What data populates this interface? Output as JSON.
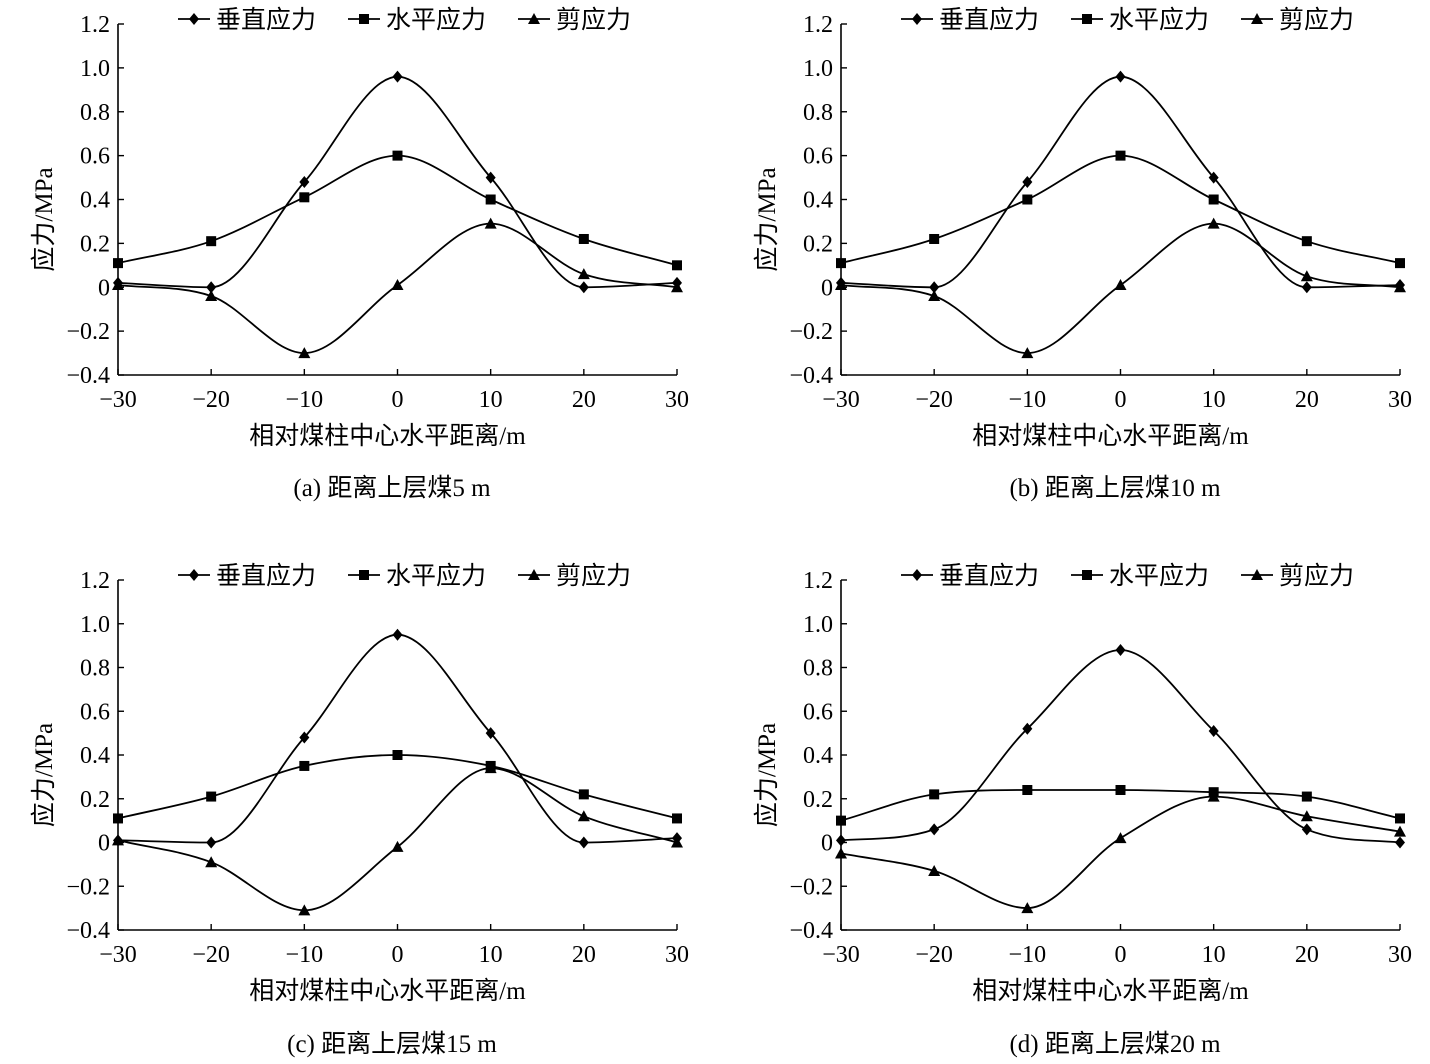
{
  "chart_data": [
    {
      "type": "line",
      "caption": "(a)  距离上层煤5 m",
      "xlabel": "相对煤柱中心水平距离/m",
      "ylabel": "应力/MPa",
      "xlim": [
        -30,
        30
      ],
      "ylim": [
        -0.4,
        1.2
      ],
      "xticks": [
        "−30",
        "−20",
        "−10",
        "0",
        "10",
        "20",
        "30"
      ],
      "yticks": [
        "−0.4",
        "−0.2",
        "0",
        "0.2",
        "0.4",
        "0.6",
        "0.8",
        "1.0",
        "1.2"
      ],
      "legend_position": "top",
      "x": [
        -30,
        -20,
        -10,
        0,
        10,
        20,
        30
      ],
      "series": [
        {
          "name": "垂直应力",
          "marker": "diamond",
          "values": [
            0.02,
            0.0,
            0.48,
            0.96,
            0.5,
            0.0,
            0.02
          ]
        },
        {
          "name": "水平应力",
          "marker": "square",
          "values": [
            0.11,
            0.21,
            0.41,
            0.6,
            0.4,
            0.22,
            0.1
          ]
        },
        {
          "name": "剪应力",
          "marker": "triangle",
          "values": [
            0.01,
            -0.04,
            -0.3,
            0.01,
            0.29,
            0.06,
            0.0
          ]
        }
      ]
    },
    {
      "type": "line",
      "caption": "(b)  距离上层煤10 m",
      "xlabel": "相对煤柱中心水平距离/m",
      "ylabel": "应力/MPa",
      "xlim": [
        -30,
        30
      ],
      "ylim": [
        -0.4,
        1.2
      ],
      "xticks": [
        "−30",
        "−20",
        "−10",
        "0",
        "10",
        "20",
        "30"
      ],
      "yticks": [
        "−0.4",
        "−0.2",
        "0",
        "0.2",
        "0.4",
        "0.6",
        "0.8",
        "1.0",
        "1.2"
      ],
      "legend_position": "top",
      "x": [
        -30,
        -20,
        -10,
        0,
        10,
        20,
        30
      ],
      "series": [
        {
          "name": "垂直应力",
          "marker": "diamond",
          "values": [
            0.02,
            0.0,
            0.48,
            0.96,
            0.5,
            0.0,
            0.01
          ]
        },
        {
          "name": "水平应力",
          "marker": "square",
          "values": [
            0.11,
            0.22,
            0.4,
            0.6,
            0.4,
            0.21,
            0.11
          ]
        },
        {
          "name": "剪应力",
          "marker": "triangle",
          "values": [
            0.01,
            -0.04,
            -0.3,
            0.01,
            0.29,
            0.05,
            0.0
          ]
        }
      ]
    },
    {
      "type": "line",
      "caption": "(c)  距离上层煤15 m",
      "xlabel": "相对煤柱中心水平距离/m",
      "ylabel": "应力/MPa",
      "xlim": [
        -30,
        30
      ],
      "ylim": [
        -0.4,
        1.2
      ],
      "xticks": [
        "−30",
        "−20",
        "−10",
        "0",
        "10",
        "20",
        "30"
      ],
      "yticks": [
        "−0.4",
        "−0.2",
        "0",
        "0.2",
        "0.4",
        "0.6",
        "0.8",
        "1.0",
        "1.2"
      ],
      "legend_position": "top",
      "x": [
        -30,
        -20,
        -10,
        0,
        10,
        20,
        30
      ],
      "series": [
        {
          "name": "垂直应力",
          "marker": "diamond",
          "values": [
            0.01,
            0.0,
            0.48,
            0.95,
            0.5,
            0.0,
            0.02
          ]
        },
        {
          "name": "水平应力",
          "marker": "square",
          "values": [
            0.11,
            0.21,
            0.35,
            0.4,
            0.35,
            0.22,
            0.11
          ]
        },
        {
          "name": "剪应力",
          "marker": "triangle",
          "values": [
            0.01,
            -0.09,
            -0.31,
            -0.02,
            0.34,
            0.12,
            0.0
          ]
        }
      ]
    },
    {
      "type": "line",
      "caption": "(d)  距离上层煤20 m",
      "xlabel": "相对煤柱中心水平距离/m",
      "ylabel": "应力/MPa",
      "xlim": [
        -30,
        30
      ],
      "ylim": [
        -0.4,
        1.2
      ],
      "xticks": [
        "−30",
        "−20",
        "−10",
        "0",
        "10",
        "20",
        "30"
      ],
      "yticks": [
        "−0.4",
        "−0.2",
        "0",
        "0.2",
        "0.4",
        "0.6",
        "0.8",
        "1.0",
        "1.2"
      ],
      "legend_position": "top",
      "x": [
        -30,
        -20,
        -10,
        0,
        10,
        20,
        30
      ],
      "series": [
        {
          "name": "垂直应力",
          "marker": "diamond",
          "values": [
            0.01,
            0.06,
            0.52,
            0.88,
            0.51,
            0.06,
            0.0
          ]
        },
        {
          "name": "水平应力",
          "marker": "square",
          "values": [
            0.1,
            0.22,
            0.24,
            0.24,
            0.23,
            0.21,
            0.11
          ]
        },
        {
          "name": "剪应力",
          "marker": "triangle",
          "values": [
            -0.05,
            -0.13,
            -0.3,
            0.02,
            0.21,
            0.12,
            0.05
          ]
        }
      ]
    }
  ]
}
